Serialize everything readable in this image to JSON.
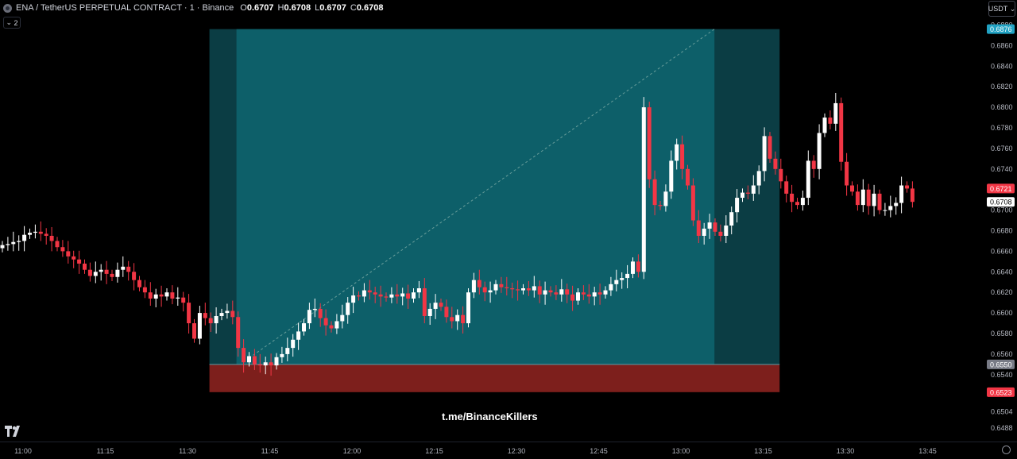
{
  "header": {
    "title": "ENA / TetherUS PERPETUAL CONTRACT · 1 · Binance",
    "ohlc": [
      {
        "k": "O",
        "v": "0.6707"
      },
      {
        "k": "H",
        "v": "0.6708"
      },
      {
        "k": "L",
        "v": "0.6707"
      },
      {
        "k": "C",
        "v": "0.6708"
      }
    ],
    "indicator_count": "2",
    "currency": "USDT"
  },
  "watermark": "t.me/BinanceKillers",
  "colors": {
    "up": "#ffffff",
    "down": "#f23645",
    "profit_zone": "#0d5f69",
    "profit_zone_edge": "#0b3d44",
    "loss_zone": "#7d1f1c"
  },
  "chart_data": {
    "type": "candlestick",
    "interval": "1m",
    "ylim": [
      0.648,
      0.6885
    ],
    "y_ticks": [
      "0.6880",
      "0.6860",
      "0.6840",
      "0.6820",
      "0.6800",
      "0.6780",
      "0.6760",
      "0.6740",
      "0.6720",
      "0.6700",
      "0.6680",
      "0.6660",
      "0.6640",
      "0.6620",
      "0.6600",
      "0.6580",
      "0.6560",
      "0.6540",
      "0.6504",
      "0.6488"
    ],
    "x_ticks": [
      "11:00",
      "11:15",
      "11:30",
      "11:45",
      "12:00",
      "12:15",
      "12:30",
      "12:45",
      "13:00",
      "13:15",
      "13:30",
      "13:45"
    ],
    "price_labels": [
      {
        "text": "0.6876",
        "color": "#22a3c4"
      },
      {
        "text": "0.6721",
        "color": "#f23645"
      },
      {
        "text": "0.6708",
        "color": "#ffffff"
      },
      {
        "text": "0.6550",
        "color": "#787b86"
      },
      {
        "text": "0.6523",
        "color": "#f23645"
      }
    ],
    "position": {
      "type": "long",
      "entry": 0.655,
      "target": 0.6876,
      "stop": 0.6523,
      "start_time": "11:34",
      "end_time": "13:18"
    },
    "candles_close": [
      0.6666,
      0.6667,
      0.6669,
      0.667,
      0.6676,
      0.6678,
      0.6679,
      0.6677,
      0.6675,
      0.667,
      0.6664,
      0.666,
      0.6655,
      0.6652,
      0.6648,
      0.6642,
      0.6636,
      0.664,
      0.6642,
      0.6638,
      0.6635,
      0.6642,
      0.6645,
      0.664,
      0.6632,
      0.6625,
      0.662,
      0.6614,
      0.6618,
      0.6616,
      0.662,
      0.6614,
      0.6615,
      0.661,
      0.659,
      0.6575,
      0.66,
      0.6595,
      0.659,
      0.6597,
      0.66,
      0.6602,
      0.6596,
      0.6566,
      0.6552,
      0.6558,
      0.655,
      0.6549,
      0.6552,
      0.6549,
      0.6557,
      0.656,
      0.6566,
      0.6574,
      0.6582,
      0.659,
      0.6603,
      0.6604,
      0.6595,
      0.6588,
      0.6585,
      0.6592,
      0.6598,
      0.661,
      0.6617,
      0.6616,
      0.6622,
      0.662,
      0.6618,
      0.6616,
      0.6615,
      0.6618,
      0.6616,
      0.6619,
      0.6614,
      0.662,
      0.6624,
      0.6597,
      0.6604,
      0.661,
      0.6606,
      0.6596,
      0.6592,
      0.6598,
      0.659,
      0.662,
      0.6632,
      0.6625,
      0.662,
      0.6622,
      0.6628,
      0.6625,
      0.6624,
      0.6623,
      0.6622,
      0.6624,
      0.6622,
      0.6626,
      0.6618,
      0.6622,
      0.662,
      0.6618,
      0.6623,
      0.6618,
      0.6612,
      0.662,
      0.6618,
      0.6616,
      0.662,
      0.6618,
      0.6622,
      0.6628,
      0.6632,
      0.6634,
      0.6638,
      0.665,
      0.664,
      0.68,
      0.673,
      0.6705,
      0.6704,
      0.6718,
      0.6748,
      0.6764,
      0.674,
      0.6724,
      0.669,
      0.6675,
      0.6682,
      0.6688,
      0.6679,
      0.6675,
      0.6685,
      0.6698,
      0.6712,
      0.6717,
      0.6716,
      0.6724,
      0.6738,
      0.6772,
      0.675,
      0.674,
      0.6728,
      0.6716,
      0.6708,
      0.6705,
      0.6712,
      0.6748,
      0.674,
      0.6775,
      0.679,
      0.6784,
      0.6804,
      0.6747,
      0.6724,
      0.6718,
      0.6705,
      0.672,
      0.6704,
      0.6716,
      0.67,
      0.67,
      0.6704,
      0.6707,
      0.6724,
      0.6721,
      0.6708
    ]
  }
}
